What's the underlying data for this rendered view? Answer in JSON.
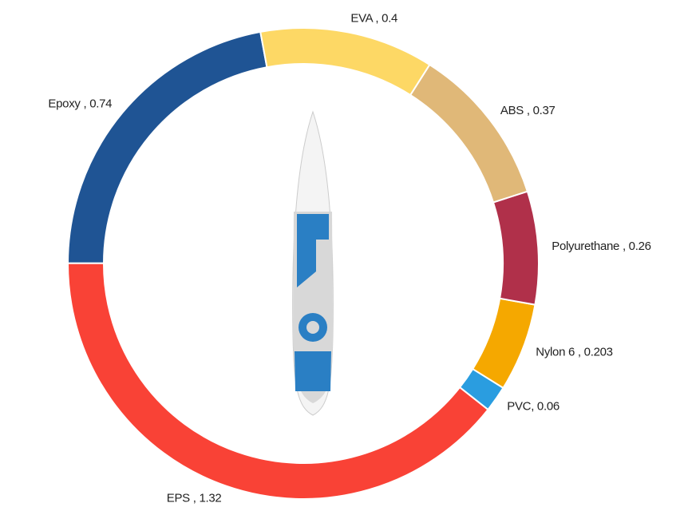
{
  "chart_data": {
    "type": "donut",
    "values": [
      0.4,
      0.37,
      0.26,
      0.203,
      0.06,
      1.32,
      0.74
    ],
    "value_labels": [
      "EVA , 0.4",
      "ABS , 0.37",
      "Polyurethane , 0.26",
      "Nylon 6 , 0.203",
      "PVC, 0.06",
      "EPS , 1.32",
      "Epoxy , 0.74"
    ],
    "colors": [
      "#fdd865",
      "#e0b878",
      "#b0304a",
      "#f5a800",
      "#2a9de0",
      "#f94236",
      "#1f5494"
    ]
  }
}
